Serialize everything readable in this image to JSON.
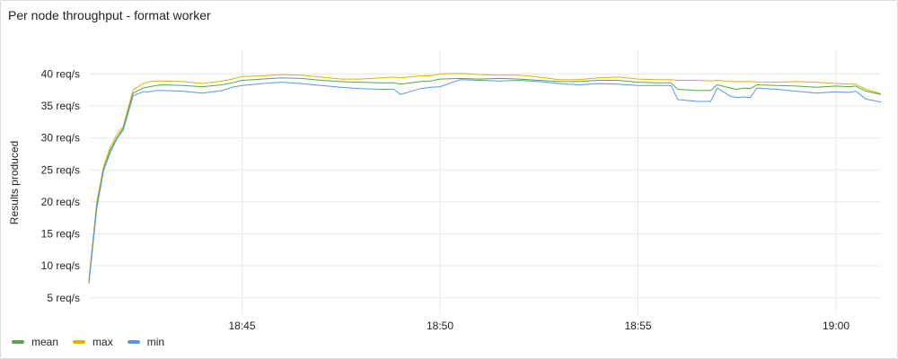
{
  "panel": {
    "title": "Per node throughput - format worker"
  },
  "chart_data": {
    "type": "line",
    "title": "Per node throughput - format worker",
    "xlabel": "",
    "ylabel": "Results produced",
    "y_unit": "req/s",
    "ylim": [
      3,
      43
    ],
    "yticks": [
      5,
      10,
      15,
      20,
      25,
      30,
      35,
      40
    ],
    "ytick_labels": [
      "5 req/s",
      "10 req/s",
      "15 req/s",
      "20 req/s",
      "25 req/s",
      "30 req/s",
      "35 req/s",
      "40 req/s"
    ],
    "xlim": [
      "18:41:08",
      "19:01:08"
    ],
    "xtick_labels": [
      "18:45",
      "18:50",
      "18:55",
      "19:00"
    ],
    "grid": true,
    "legend_position": "bottom-left",
    "x": [
      "18:41:08",
      "18:41:20",
      "18:41:30",
      "18:41:40",
      "18:41:50",
      "18:42:00",
      "18:42:15",
      "18:42:30",
      "18:42:40",
      "18:42:50",
      "18:43:00",
      "18:43:30",
      "18:44:00",
      "18:44:30",
      "18:44:45",
      "18:45:00",
      "18:45:30",
      "18:46:00",
      "18:46:30",
      "18:47:00",
      "18:47:30",
      "18:48:00",
      "18:48:30",
      "18:48:50",
      "18:49:00",
      "18:49:30",
      "18:49:45",
      "18:50:00",
      "18:50:30",
      "18:51:00",
      "18:51:30",
      "18:52:00",
      "18:52:30",
      "18:53:00",
      "18:53:30",
      "18:54:00",
      "18:54:30",
      "18:55:00",
      "18:55:30",
      "18:55:50",
      "18:56:00",
      "18:56:30",
      "18:56:50",
      "18:57:00",
      "18:57:20",
      "18:57:30",
      "18:57:40",
      "18:57:50",
      "18:58:00",
      "18:58:30",
      "18:59:00",
      "18:59:30",
      "19:00:00",
      "19:00:20",
      "19:00:30",
      "19:00:45",
      "19:01:08"
    ],
    "series": [
      {
        "name": "mean",
        "color": "#56a64b",
        "values": [
          7.5,
          19.5,
          25,
          28,
          30,
          31.5,
          37,
          37.8,
          38,
          38.2,
          38.3,
          38.2,
          38,
          38.3,
          38.6,
          39,
          39.2,
          39.4,
          39.3,
          39,
          38.8,
          38.7,
          38.6,
          38.6,
          38.4,
          38.8,
          38.9,
          39.2,
          39.3,
          39.2,
          39.3,
          39.2,
          39,
          38.8,
          38.8,
          39,
          39,
          38.7,
          38.6,
          38.6,
          37.6,
          37.4,
          37.4,
          38.3,
          37.8,
          37.6,
          37.8,
          37.7,
          38.3,
          38.2,
          38.1,
          37.9,
          38.1,
          38,
          38.1,
          37.3,
          36.8
        ]
      },
      {
        "name": "max",
        "color": "#e0b400",
        "values": [
          7.8,
          20,
          25.5,
          28.5,
          30.5,
          31.8,
          37.5,
          38.5,
          38.8,
          38.9,
          38.9,
          38.8,
          38.5,
          38.9,
          39.2,
          39.6,
          39.7,
          39.9,
          39.8,
          39.5,
          39.2,
          39.2,
          39.4,
          39.5,
          39.4,
          39.7,
          39.7,
          40,
          40.1,
          39.9,
          39.8,
          39.8,
          39.5,
          39.1,
          39.1,
          39.4,
          39.5,
          39.2,
          39.1,
          39.1,
          39,
          39,
          38.9,
          39,
          38.8,
          38.8,
          38.8,
          38.8,
          38.7,
          38.7,
          38.8,
          38.7,
          38.5,
          38.4,
          38.4,
          37.6,
          36.9
        ]
      },
      {
        "name": "min",
        "color": "#5794f2",
        "values": [
          7.2,
          19,
          24.8,
          27.6,
          29.8,
          31.2,
          36.6,
          37.2,
          37.2,
          37.4,
          37.4,
          37.3,
          37,
          37.4,
          37.9,
          38.2,
          38.5,
          38.7,
          38.5,
          38.2,
          37.9,
          37.7,
          37.6,
          37.6,
          36.8,
          37.7,
          37.9,
          38,
          39.1,
          39,
          38.9,
          39,
          38.8,
          38.5,
          38.3,
          38.5,
          38.4,
          38.2,
          38.2,
          38.2,
          36,
          35.7,
          35.7,
          37.8,
          36.5,
          36.3,
          36.4,
          36.3,
          37.8,
          37.6,
          37.3,
          37,
          37.2,
          37.1,
          37.3,
          36.1,
          35.6
        ]
      }
    ]
  }
}
